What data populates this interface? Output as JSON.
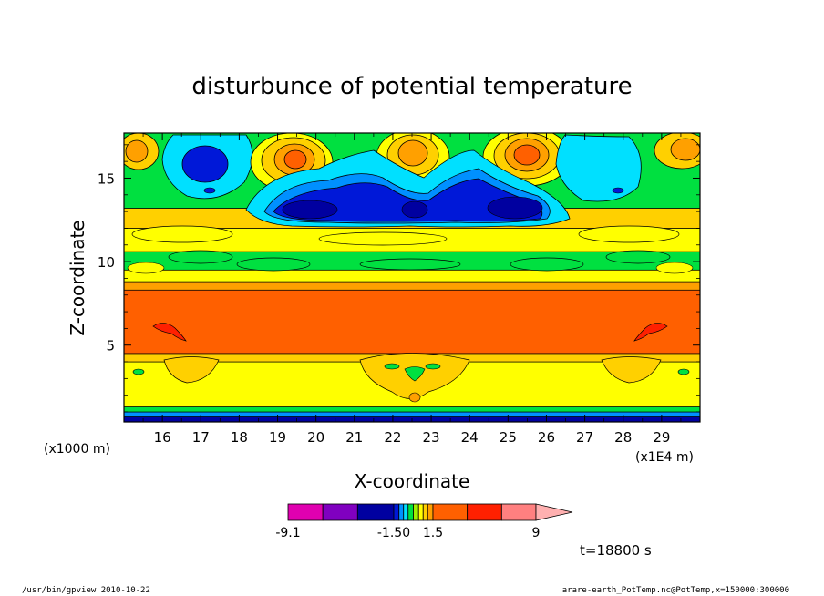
{
  "chart_data": {
    "type": "heatmap",
    "title": "disturbunce of potential temperature",
    "xlabel": "X-coordinate",
    "ylabel": "Z-coordinate",
    "x_unit_left": "(x1000 m)",
    "x_unit_right": "(x1E4 m)",
    "xlim": [
      15,
      30
    ],
    "ylim": [
      0.4,
      17.7
    ],
    "x_ticks": [
      "16",
      "17",
      "18",
      "19",
      "20",
      "21",
      "22",
      "23",
      "24",
      "25",
      "26",
      "27",
      "28",
      "29"
    ],
    "y_ticks": [
      "5",
      "10",
      "15"
    ],
    "time_label": "t=18800 s",
    "colorbar": {
      "levels": [
        -9.1,
        -1.5,
        0,
        1.5,
        9
      ],
      "tick_labels": [
        "-9.1",
        "-1.50",
        "1.5",
        "9"
      ],
      "colors": [
        "#e000b0",
        "#8000c0",
        "#0000a0",
        "#0018d8",
        "#0090ff",
        "#00e0ff",
        "#00e040",
        "#a0f000",
        "#ffff00",
        "#ffd000",
        "#ffa000",
        "#ff6000",
        "#ff2000",
        "#ff8080",
        "#ffb0b0"
      ]
    },
    "bands": [
      {
        "z": [
          0.4,
          0.7
        ],
        "color": "#0000a0"
      },
      {
        "z": [
          0.7,
          1.0
        ],
        "color": "#0090ff"
      },
      {
        "z": [
          1.0,
          1.3
        ],
        "color": "#00e040"
      },
      {
        "z": [
          1.3,
          4.0
        ],
        "color": "#ffff00"
      },
      {
        "z": [
          4.0,
          4.5
        ],
        "color": "#ffd000"
      },
      {
        "z": [
          4.5,
          8.3
        ],
        "color": "#ff6000"
      },
      {
        "z": [
          8.3,
          8.8
        ],
        "color": "#ffa000"
      },
      {
        "z": [
          8.8,
          9.5
        ],
        "color": "#ffff00"
      },
      {
        "z": [
          9.5,
          10.6
        ],
        "color": "#00e040"
      },
      {
        "z": [
          10.6,
          12.0
        ],
        "color": "#ffff00"
      },
      {
        "z": [
          12.0,
          13.2
        ],
        "color": "#ffd000"
      },
      {
        "z": [
          13.2,
          17.7
        ],
        "color": "#00e040"
      }
    ]
  },
  "footer": {
    "left": "/usr/bin/gpview  2010-10-22",
    "right": "arare-earth_PotTemp.nc@PotTemp,x=150000:300000"
  }
}
